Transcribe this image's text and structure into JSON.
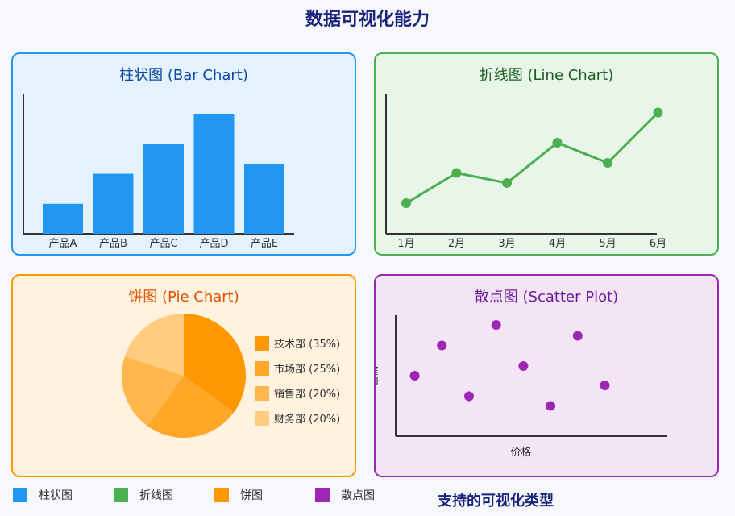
{
  "title": "数据可视化能力",
  "colors": {
    "bar": "#2196f3",
    "line": "#4caf50",
    "pie": "#ff9800",
    "scatter": "#9c27b0",
    "axis": "#333333"
  },
  "bar_panel": {
    "title": "柱状图 (Bar Chart)"
  },
  "line_panel": {
    "title": "折线图 (Line Chart)"
  },
  "pie_panel": {
    "title": "饼图 (Pie Chart)"
  },
  "scatter_panel": {
    "title": "散点图 (Scatter Plot)"
  },
  "chart_data": [
    {
      "type": "bar",
      "categories": [
        "产品A",
        "产品B",
        "产品C",
        "产品D",
        "产品E"
      ],
      "values": [
        30,
        60,
        90,
        120,
        70
      ],
      "ylim": [
        0,
        140
      ],
      "grid": false
    },
    {
      "type": "line",
      "categories": [
        "1月",
        "2月",
        "3月",
        "4月",
        "5月",
        "6月"
      ],
      "values": [
        30,
        60,
        50,
        90,
        70,
        120
      ],
      "ylim": [
        0,
        140
      ],
      "grid": false
    },
    {
      "type": "pie",
      "slices": [
        {
          "label": "技术部 (35%)",
          "value": 35,
          "color": "#ff9800"
        },
        {
          "label": "市场部 (25%)",
          "value": 25,
          "color": "#ffa726"
        },
        {
          "label": "销售部 (20%)",
          "value": 20,
          "color": "#ffb74d"
        },
        {
          "label": "财务部 (20%)",
          "value": 20,
          "color": "#ffcc80"
        }
      ],
      "legend": "right"
    },
    {
      "type": "scatter",
      "xlabel": "价格",
      "ylabel": "销量",
      "xlim": [
        0,
        10
      ],
      "ylim": [
        0,
        10
      ],
      "points": [
        {
          "x": 0.7,
          "y": 5
        },
        {
          "x": 1.7,
          "y": 7.5
        },
        {
          "x": 2.7,
          "y": 3.3
        },
        {
          "x": 3.7,
          "y": 9.2
        },
        {
          "x": 4.7,
          "y": 5.8
        },
        {
          "x": 5.7,
          "y": 2.5
        },
        {
          "x": 6.7,
          "y": 8.3
        },
        {
          "x": 7.7,
          "y": 4.2
        }
      ],
      "grid": false
    }
  ],
  "legend": {
    "items": [
      {
        "label": "柱状图",
        "color": "#2196f3"
      },
      {
        "label": "折线图",
        "color": "#4caf50"
      },
      {
        "label": "饼图",
        "color": "#ff9800"
      },
      {
        "label": "散点图",
        "color": "#9c27b0"
      }
    ]
  },
  "footer_title": "支持的可视化类型"
}
